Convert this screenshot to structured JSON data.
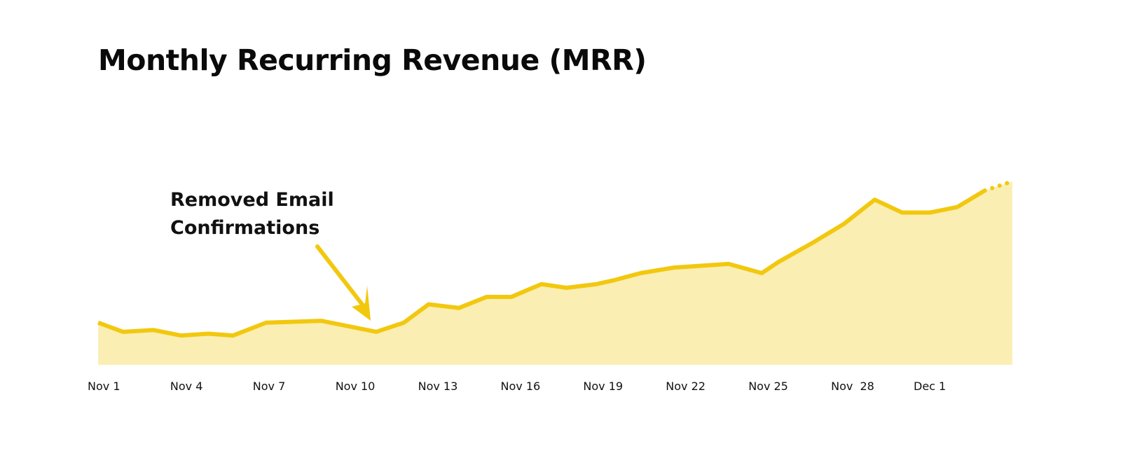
{
  "chart_data": {
    "type": "area",
    "title": "Monthly Recurring Revenue (MRR)",
    "xlabel": "",
    "ylabel": "",
    "x_tick_labels": [
      "Nov 1",
      "Nov 4",
      "Nov 7",
      "Nov 10",
      "Nov 13",
      "Nov 16",
      "Nov 19",
      "Nov 22",
      "Nov 25",
      "Nov  28",
      "Dec 1"
    ],
    "x_tick_days": [
      1,
      4,
      7,
      10,
      13,
      16,
      19,
      22,
      25,
      28,
      31
    ],
    "grid": false,
    "y_axis_shown": false,
    "series": [
      {
        "x_day_of_period": [
          0.8,
          1.7,
          2.8,
          3.8,
          4.8,
          5.7,
          6.9,
          8.9,
          10.9,
          11.9,
          12.8,
          13.9,
          14.9,
          15.8,
          16.9,
          17.8,
          18.9,
          19.5,
          20.5,
          21.7,
          22.7,
          23.7,
          24.9,
          25.5,
          26.8,
          27.9,
          29.0,
          30.0,
          31.0,
          32.0,
          33.0,
          34.0
        ],
        "values_relative": [
          23,
          18,
          19,
          16,
          17,
          16,
          23,
          24,
          18,
          23,
          33,
          31,
          37,
          37,
          44,
          42,
          44,
          46,
          50,
          53,
          54,
          55,
          50,
          56,
          67,
          77,
          90,
          83,
          83,
          86,
          95,
          100
        ],
        "dotted_last_segment": true,
        "line_color": "#f2c80f",
        "fill_color": "#faeeb3"
      }
    ],
    "annotations": [
      {
        "text_lines": [
          "Removed Email",
          "Confirmations"
        ],
        "points_to_day": 10.9
      }
    ]
  }
}
